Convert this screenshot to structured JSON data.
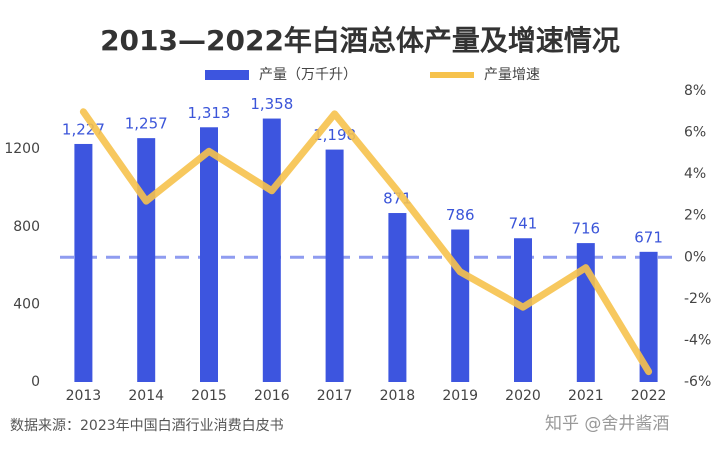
{
  "chart_data": {
    "type": "bar_line",
    "title": "2013—2022年白酒总体产量及增速情况",
    "categories": [
      "2013",
      "2014",
      "2015",
      "2016",
      "2017",
      "2018",
      "2019",
      "2020",
      "2021",
      "2022"
    ],
    "series": [
      {
        "name": "产量（万千升）",
        "type": "bar",
        "color": "#3d55df",
        "values": [
          1227,
          1257,
          1313,
          1358,
          1198,
          871,
          786,
          741,
          716,
          671
        ],
        "value_labels": [
          "1,227",
          "1,257",
          "1,313",
          "1,358",
          "1,198",
          "871",
          "786",
          "741",
          "716",
          "671"
        ]
      },
      {
        "name": "产量增速",
        "type": "line",
        "axis": "y2",
        "color": "#f6c24c",
        "values": [
          7.0,
          2.7,
          5.1,
          3.2,
          6.9,
          3.2,
          -0.7,
          -2.4,
          -0.5,
          -5.5
        ]
      }
    ],
    "ylim": [
      0,
      1500
    ],
    "yticks": [
      0,
      400,
      800,
      1200
    ],
    "y2lim": [
      -6,
      8
    ],
    "y2ticks": [
      {
        "value": -6,
        "label": "-6%"
      },
      {
        "value": -4,
        "label": "-4%"
      },
      {
        "value": -2,
        "label": "-2%"
      },
      {
        "value": 0,
        "label": "0%"
      },
      {
        "value": 2,
        "label": "2%"
      },
      {
        "value": 4,
        "label": "4%"
      },
      {
        "value": 6,
        "label": "6%"
      },
      {
        "value": 8,
        "label": "8%"
      }
    ],
    "source": "数据来源：2023年中国白酒行业消费白皮书",
    "watermark": "知乎 @舍井酱酒"
  }
}
